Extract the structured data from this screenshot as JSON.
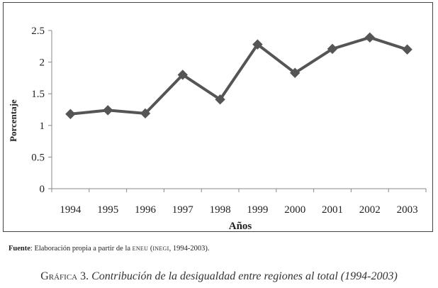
{
  "chart_data": {
    "type": "line",
    "categories": [
      "1994",
      "1995",
      "1996",
      "1997",
      "1998",
      "1999",
      "2000",
      "2001",
      "2002",
      "2003"
    ],
    "values": [
      1.18,
      1.24,
      1.19,
      1.8,
      1.41,
      2.28,
      1.83,
      2.21,
      2.39,
      2.2
    ],
    "xlabel": "Años",
    "ylabel": "Porcentaje",
    "ylim": [
      0,
      2.5
    ],
    "yticks": [
      "0",
      "0.5",
      "1",
      "1.5",
      "2",
      "2.5"
    ],
    "grid": false,
    "marker": "diamond",
    "line_color": "#555555",
    "marker_color": "#555555"
  },
  "source": {
    "label": "Fuente",
    "text_before": ": Elaboración propia a partir de la ",
    "abbr1": "ENEU",
    "text_mid": " (",
    "abbr2": "INEGI",
    "text_after": ", 1994-2003)."
  },
  "caption": {
    "label": "Gráfica 3.",
    "text": "Contribución de la desigualdad entre regiones al total (1994-2003)"
  }
}
